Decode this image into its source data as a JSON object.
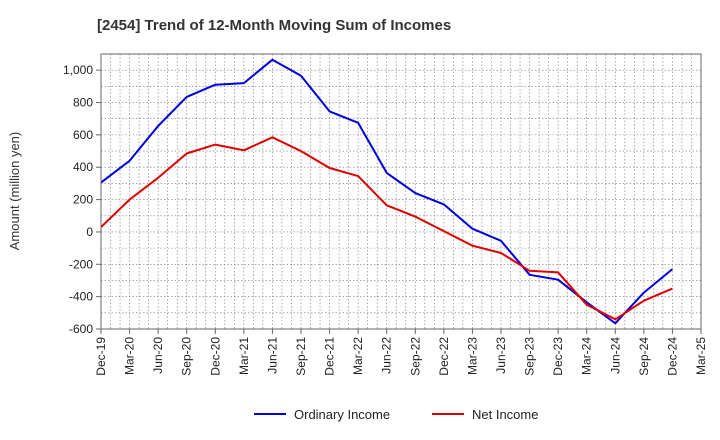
{
  "chart_data": {
    "type": "line",
    "title": "[2454]  Trend of 12-Month Moving Sum of Incomes",
    "xlabel": "",
    "ylabel": "Amount (million yen)",
    "ylim": [
      -600,
      1100
    ],
    "yticks": [
      -600,
      -400,
      -200,
      0,
      200,
      400,
      600,
      800,
      1000
    ],
    "ytick_labels": [
      "-600",
      "-400",
      "-200",
      "0",
      "200",
      "400",
      "600",
      "800",
      "1,000"
    ],
    "x_tick_labels": [
      "Dec-19",
      "Mar-20",
      "Jun-20",
      "Sep-20",
      "Dec-20",
      "Mar-21",
      "Jun-21",
      "Sep-21",
      "Dec-21",
      "Mar-22",
      "Jun-22",
      "Sep-22",
      "Dec-22",
      "Mar-23",
      "Jun-23",
      "Sep-23",
      "Dec-23",
      "Mar-24",
      "Jun-24",
      "Sep-24",
      "Dec-24",
      "Mar-25"
    ],
    "grid": true,
    "legend_position": "bottom-center",
    "series": [
      {
        "name": "Ordinary Income",
        "color": "#0000dd",
        "values": [
          305,
          440,
          655,
          835,
          910,
          920,
          1065,
          965,
          745,
          675,
          365,
          240,
          170,
          20,
          -55,
          -265,
          -295,
          -435,
          -565,
          -375,
          -230
        ]
      },
      {
        "name": "Net Income",
        "color": "#dd0000",
        "values": [
          30,
          200,
          335,
          485,
          540,
          505,
          585,
          500,
          395,
          345,
          165,
          95,
          5,
          -85,
          -130,
          -240,
          -250,
          -450,
          -540,
          -425,
          -350
        ]
      }
    ]
  }
}
